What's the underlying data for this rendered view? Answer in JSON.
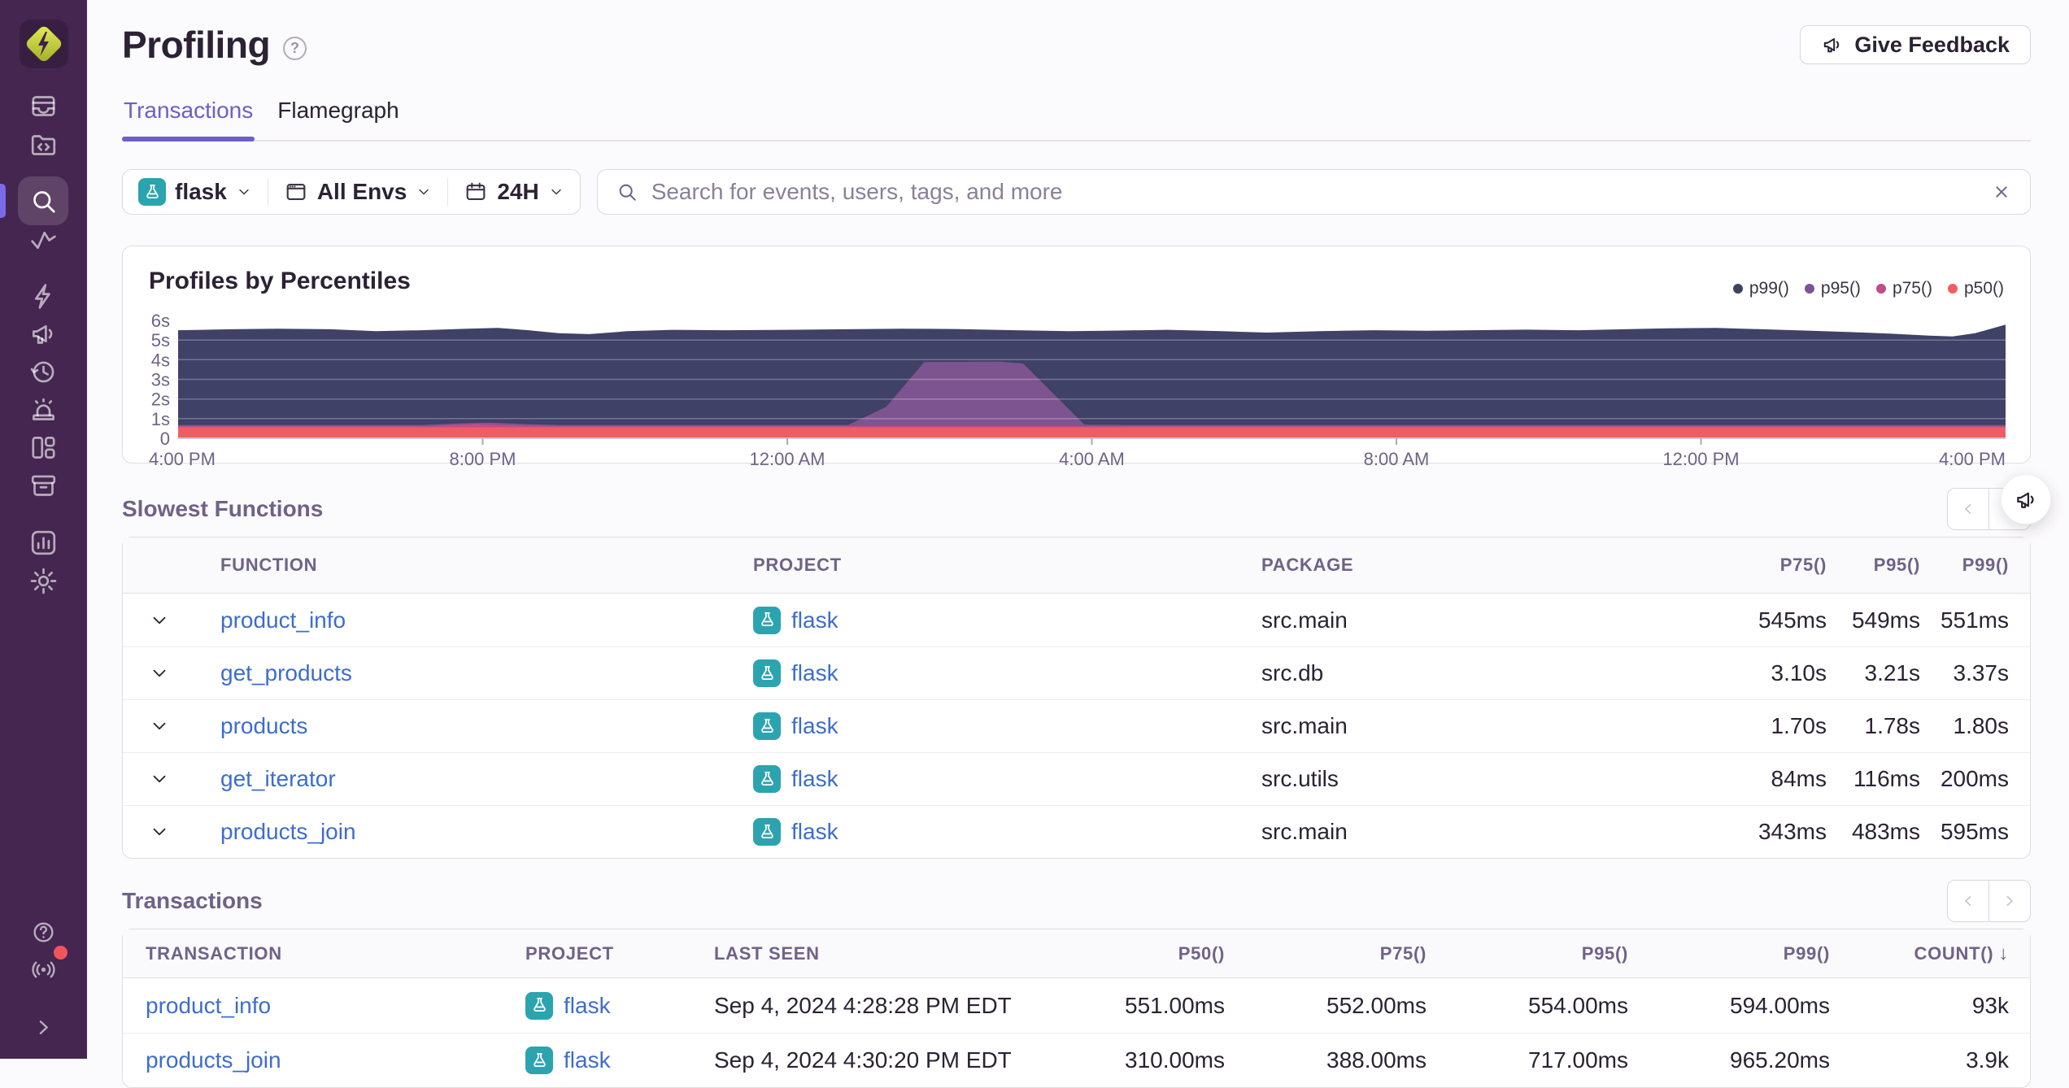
{
  "app": {
    "feedback_label": "Give Feedback",
    "fab_icon": "megaphone"
  },
  "header": {
    "title": "Profiling",
    "help_icon": "question-circle"
  },
  "sidebar": {
    "items": [
      {
        "icon": "inbox",
        "name": "issues"
      },
      {
        "icon": "folder-code",
        "name": "projects"
      },
      {
        "icon": "search",
        "name": "explore",
        "active": true
      },
      {
        "icon": "activity",
        "name": "traces"
      },
      {
        "icon": "lightning",
        "name": "quickstart"
      },
      {
        "icon": "megaphone",
        "name": "user-feedback"
      },
      {
        "icon": "clock-history",
        "name": "replays"
      },
      {
        "icon": "siren",
        "name": "alerts"
      },
      {
        "icon": "layout-grid",
        "name": "dashboards"
      },
      {
        "icon": "archive-box",
        "name": "releases"
      },
      {
        "icon": "bar-chart-square",
        "name": "stats"
      },
      {
        "icon": "gear",
        "name": "settings"
      }
    ],
    "bottom_items": [
      {
        "icon": "question-circle",
        "name": "help"
      },
      {
        "icon": "broadcast",
        "name": "whats-new",
        "badge": true
      },
      {
        "icon": "chevron-right",
        "name": "expand-sidebar"
      }
    ]
  },
  "tabs": [
    {
      "label": "Transactions",
      "active": true
    },
    {
      "label": "Flamegraph",
      "active": false
    }
  ],
  "filters": {
    "project": "flask",
    "project_icon": "flask",
    "environment": "All Envs",
    "environment_icon": "window",
    "date_range": "24H",
    "date_icon": "calendar",
    "chevron_icon": "chevron-down"
  },
  "search": {
    "placeholder": "Search for events, users, tags, and more",
    "icon": "magnifier",
    "clear_icon": "x-close"
  },
  "chart_data": {
    "type": "area",
    "title": "Profiles by Percentiles",
    "xlabel": "",
    "ylabel": "",
    "x_hours_span": 24,
    "x_tick_hours": [
      0,
      4,
      8,
      12,
      16,
      20,
      24
    ],
    "x_tick_labels": [
      "4:00 PM",
      "8:00 PM",
      "12:00 AM",
      "4:00 AM",
      "8:00 AM",
      "12:00 PM",
      "4:00 PM"
    ],
    "y_tick_labels": [
      "6s",
      "5s",
      "4s",
      "3s",
      "2s",
      "1s",
      "0"
    ],
    "ylim_seconds": [
      0,
      6
    ],
    "grid": "horizontal",
    "legend_position": "top-right",
    "legend": [
      {
        "name": "p99()",
        "color": "#3E4263"
      },
      {
        "name": "p95()",
        "color": "#7D529B"
      },
      {
        "name": "p75()",
        "color": "#C04C8A"
      },
      {
        "name": "p50()",
        "color": "#F05E5E"
      }
    ],
    "series": [
      {
        "name": "p99()",
        "fill": "#3F4167",
        "points": [
          [
            0,
            5.5
          ],
          [
            0.7,
            5.55
          ],
          [
            1.3,
            5.58
          ],
          [
            2,
            5.55
          ],
          [
            2.6,
            5.45
          ],
          [
            3.2,
            5.5
          ],
          [
            3.8,
            5.58
          ],
          [
            4.2,
            5.62
          ],
          [
            4.6,
            5.5
          ],
          [
            5,
            5.35
          ],
          [
            5.4,
            5.3
          ],
          [
            5.9,
            5.45
          ],
          [
            6.5,
            5.52
          ],
          [
            7.2,
            5.5
          ],
          [
            8,
            5.52
          ],
          [
            8.8,
            5.55
          ],
          [
            9.5,
            5.58
          ],
          [
            10.2,
            5.56
          ],
          [
            11,
            5.5
          ],
          [
            11.7,
            5.45
          ],
          [
            12.3,
            5.48
          ],
          [
            13,
            5.52
          ],
          [
            13.7,
            5.45
          ],
          [
            14.3,
            5.38
          ],
          [
            15,
            5.45
          ],
          [
            15.7,
            5.5
          ],
          [
            16.4,
            5.47
          ],
          [
            17,
            5.5
          ],
          [
            17.7,
            5.53
          ],
          [
            18.4,
            5.5
          ],
          [
            19,
            5.55
          ],
          [
            19.6,
            5.6
          ],
          [
            20.2,
            5.62
          ],
          [
            20.8,
            5.55
          ],
          [
            21.4,
            5.48
          ],
          [
            22,
            5.4
          ],
          [
            22.5,
            5.32
          ],
          [
            23,
            5.22
          ],
          [
            23.3,
            5.18
          ],
          [
            23.6,
            5.35
          ],
          [
            24,
            5.78
          ]
        ]
      },
      {
        "name": "p95()",
        "fill": "#7D548F",
        "points": [
          [
            0,
            0.68
          ],
          [
            3.2,
            0.68
          ],
          [
            3.7,
            0.76
          ],
          [
            4.1,
            0.8
          ],
          [
            4.6,
            0.72
          ],
          [
            5,
            0.68
          ],
          [
            8.8,
            0.68
          ],
          [
            9.3,
            1.6
          ],
          [
            9.8,
            3.88
          ],
          [
            10.8,
            3.9
          ],
          [
            11.1,
            3.8
          ],
          [
            11.9,
            0.7
          ],
          [
            12.5,
            0.68
          ],
          [
            24,
            0.68
          ]
        ]
      },
      {
        "name": "p75()",
        "fill": "#C04C8A",
        "points": [
          [
            0,
            0.62
          ],
          [
            3.3,
            0.62
          ],
          [
            3.9,
            0.73
          ],
          [
            4.5,
            0.66
          ],
          [
            5,
            0.62
          ],
          [
            24,
            0.62
          ]
        ]
      },
      {
        "name": "p50()",
        "fill": "#EF5D63",
        "points": [
          [
            0,
            0.56
          ],
          [
            24,
            0.56
          ]
        ]
      }
    ]
  },
  "slowest_functions": {
    "heading": "Slowest Functions",
    "pagination_icons": [
      "chevron-left",
      "chevron-right"
    ],
    "columns": [
      "FUNCTION",
      "PROJECT",
      "PACKAGE",
      "P75()",
      "P95()",
      "P99()"
    ],
    "rows": [
      {
        "function": "product_info",
        "project": "flask",
        "project_icon": "flask",
        "package": "src.main",
        "p75": "545ms",
        "p95": "549ms",
        "p99": "551ms"
      },
      {
        "function": "get_products",
        "project": "flask",
        "project_icon": "flask",
        "package": "src.db",
        "p75": "3.10s",
        "p95": "3.21s",
        "p99": "3.37s"
      },
      {
        "function": "products",
        "project": "flask",
        "project_icon": "flask",
        "package": "src.main",
        "p75": "1.70s",
        "p95": "1.78s",
        "p99": "1.80s"
      },
      {
        "function": "get_iterator",
        "project": "flask",
        "project_icon": "flask",
        "package": "src.utils",
        "p75": "84ms",
        "p95": "116ms",
        "p99": "200ms"
      },
      {
        "function": "products_join",
        "project": "flask",
        "project_icon": "flask",
        "package": "src.main",
        "p75": "343ms",
        "p95": "483ms",
        "p99": "595ms"
      }
    ]
  },
  "transactions": {
    "heading": "Transactions",
    "pagination_icons": [
      "chevron-left",
      "chevron-right"
    ],
    "columns": [
      "TRANSACTION",
      "PROJECT",
      "LAST SEEN",
      "P50()",
      "P75()",
      "P95()",
      "P99()",
      "COUNT()"
    ],
    "sorted_column": "COUNT()",
    "sort_direction": "desc",
    "rows": [
      {
        "transaction": "product_info",
        "project": "flask",
        "project_icon": "flask",
        "last_seen": "Sep 4, 2024 4:28:28 PM EDT",
        "p50": "551.00ms",
        "p75": "552.00ms",
        "p95": "554.00ms",
        "p99": "594.00ms",
        "count": "93k"
      },
      {
        "transaction": "products_join",
        "project": "flask",
        "project_icon": "flask",
        "last_seen": "Sep 4, 2024 4:30:20 PM EDT",
        "p50": "310.00ms",
        "p75": "388.00ms",
        "p95": "717.00ms",
        "p99": "965.20ms",
        "count": "3.9k"
      }
    ]
  }
}
